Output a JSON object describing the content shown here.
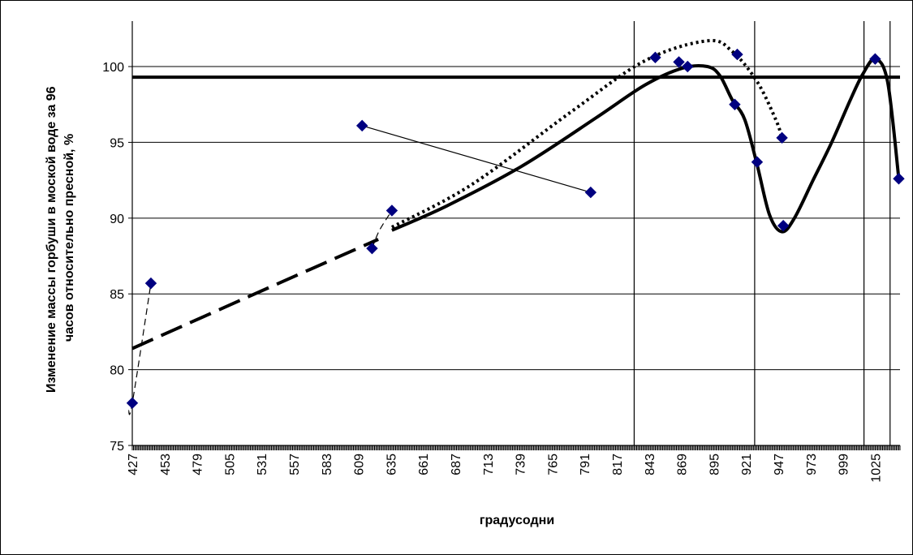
{
  "chart_data": {
    "type": "scatter",
    "title": "",
    "xlabel": "градусодни",
    "ylabel_lines": [
      "Изменение массы горбуши в моской воде за 96",
      "часов относительно пресной, %"
    ],
    "xlim": [
      427,
      1045
    ],
    "ylim": [
      75,
      103
    ],
    "y_ticks": [
      75,
      80,
      85,
      90,
      95,
      100
    ],
    "x_ticks": [
      427,
      453,
      479,
      505,
      531,
      557,
      583,
      609,
      635,
      661,
      687,
      713,
      739,
      765,
      791,
      817,
      843,
      869,
      895,
      921,
      947,
      973,
      999,
      1025
    ],
    "grid": "horizontal",
    "points": [
      {
        "x": 427,
        "y": 77.8
      },
      {
        "x": 442,
        "y": 85.7
      },
      {
        "x": 612,
        "y": 96.1
      },
      {
        "x": 620,
        "y": 88.0
      },
      {
        "x": 636,
        "y": 90.5
      },
      {
        "x": 796,
        "y": 91.7
      },
      {
        "x": 848,
        "y": 100.6
      },
      {
        "x": 867,
        "y": 100.3
      },
      {
        "x": 874,
        "y": 100.0
      },
      {
        "x": 912,
        "y": 97.5
      },
      {
        "x": 914,
        "y": 100.8
      },
      {
        "x": 930,
        "y": 93.7
      },
      {
        "x": 950,
        "y": 95.3
      },
      {
        "x": 951,
        "y": 89.5
      },
      {
        "x": 1025,
        "y": 100.5
      },
      {
        "x": 1044,
        "y": 92.6
      }
    ],
    "reference_line_y": 99.3,
    "vertical_lines_x": [
      831,
      928,
      1016,
      1037
    ],
    "lines": [
      {
        "style": "thin-dashed",
        "x": [
          424,
          427,
          442
        ],
        "y": [
          77.3,
          77.8,
          85.7
        ]
      },
      {
        "style": "thick-dashed",
        "x": [
          427,
          520,
          625
        ],
        "y": [
          81.4,
          84.8,
          88.6
        ]
      },
      {
        "style": "thin-dashed",
        "x": [
          620,
          626,
          636
        ],
        "y": [
          88.0,
          89.2,
          90.5
        ]
      },
      {
        "style": "thin-solid",
        "x": [
          612,
          796
        ],
        "y": [
          96.1,
          91.7
        ]
      },
      {
        "style": "dotted",
        "x": [
          636,
          700,
          780,
          840,
          890,
          910,
          930,
          945,
          950
        ],
        "y": [
          89.4,
          92.2,
          97.0,
          100.4,
          101.7,
          101.0,
          99.0,
          96.5,
          95.3
        ]
      },
      {
        "style": "thick-solid",
        "x": [
          636,
          680,
          740,
          800,
          840,
          870,
          890,
          900,
          910,
          920,
          930,
          940,
          950,
          960,
          975,
          990,
          1005,
          1015,
          1025,
          1035,
          1044
        ],
        "y": [
          89.2,
          90.8,
          93.4,
          96.6,
          98.8,
          99.9,
          100.0,
          99.4,
          97.8,
          96.5,
          93.5,
          90.2,
          89.1,
          90.0,
          92.5,
          95.0,
          97.8,
          99.5,
          100.5,
          99.0,
          92.6
        ]
      }
    ]
  }
}
